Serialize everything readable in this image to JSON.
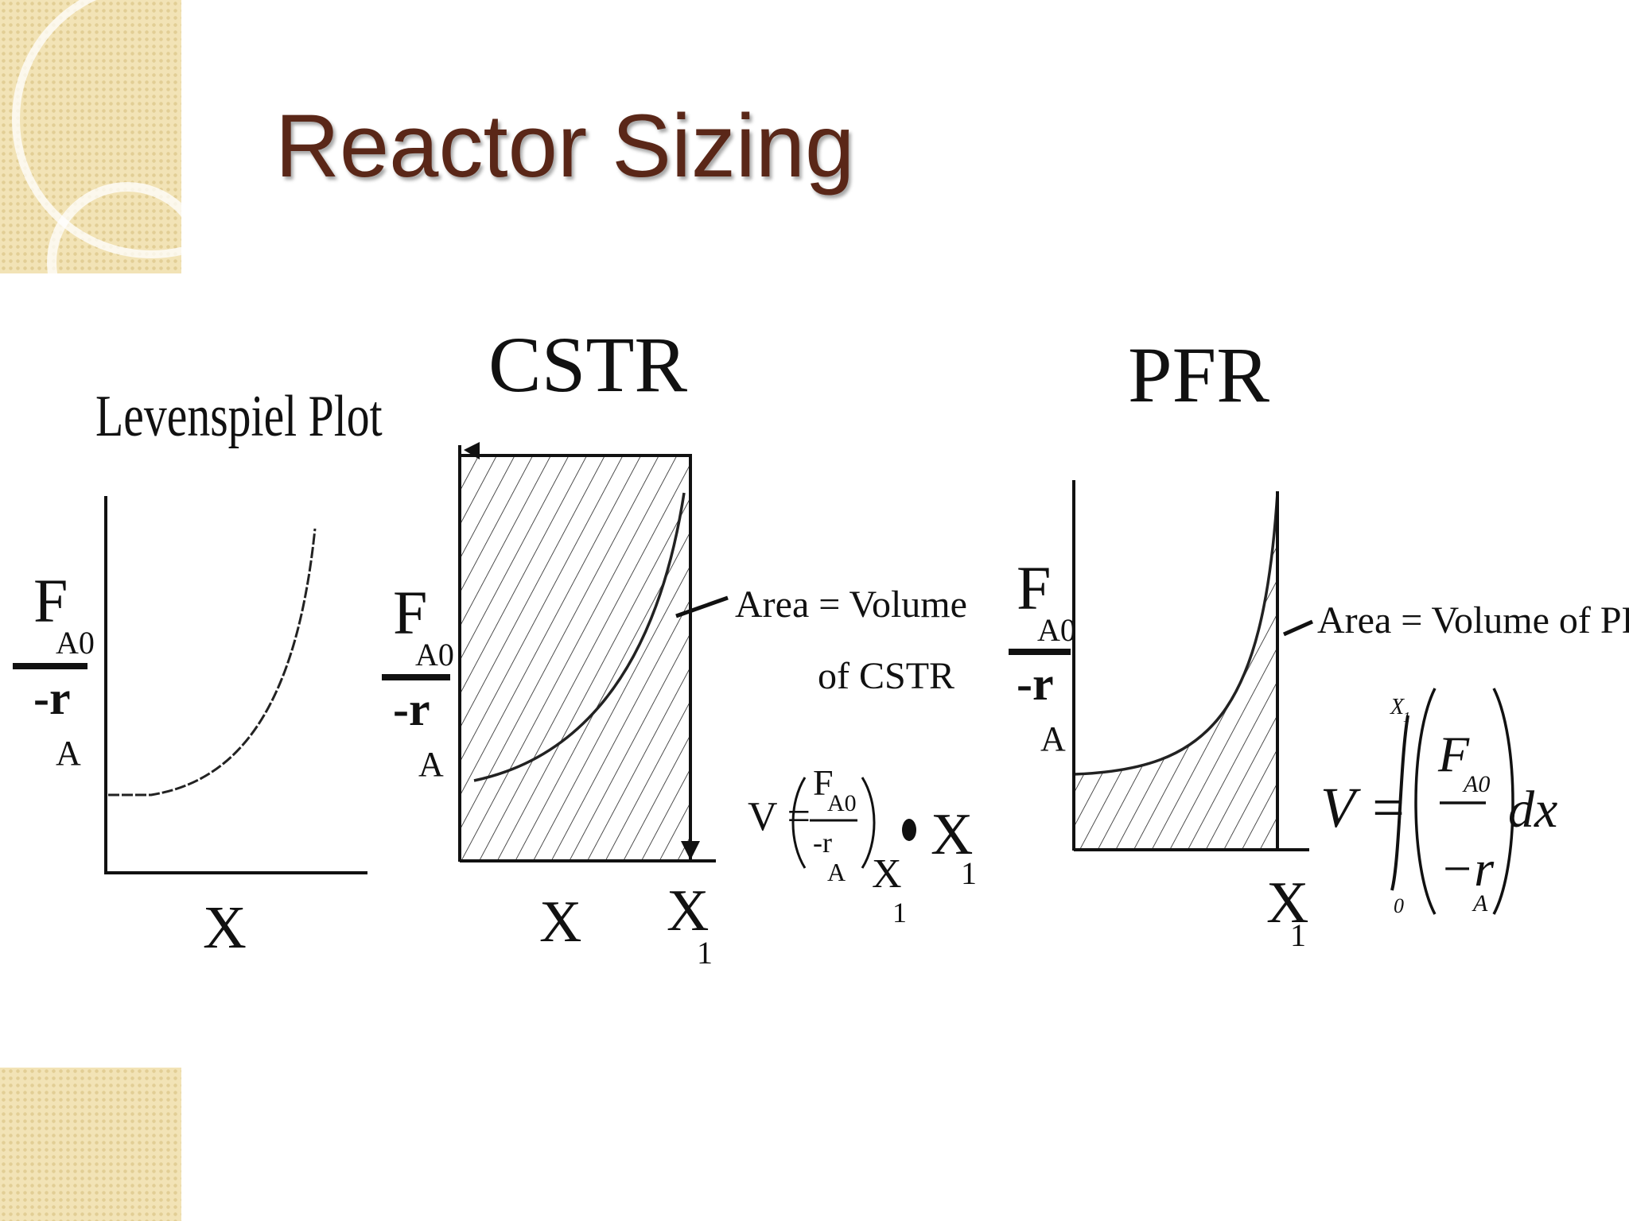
{
  "slide": {
    "title": "Reactor Sizing"
  },
  "levenspiel": {
    "heading": "Levenspiel Plot",
    "y_num": "F",
    "y_num_sub": "A0",
    "y_den": "-r",
    "y_den_sub": "A",
    "x_label": "X"
  },
  "cstr": {
    "heading": "CSTR",
    "y_num": "F",
    "y_num_sub": "A0",
    "y_den": "-r",
    "y_den_sub": "A",
    "x_label": "X",
    "x1_label": "X",
    "x1_sub": "1",
    "area_line1": "Area = Volume",
    "area_line2": "of CSTR",
    "eq_v": "V =",
    "eq_num": "F",
    "eq_num_sub": "A0",
    "eq_den": "-r",
    "eq_den_sub": "A",
    "eq_eval": "X",
    "eq_eval_sub": "1",
    "eq_x1": "X",
    "eq_x1_sub": "1"
  },
  "pfr": {
    "heading": "PFR",
    "y_num": "F",
    "y_num_sub": "A0",
    "y_den": "-r",
    "y_den_sub": "A",
    "x1_label": "X",
    "x1_sub": "1",
    "area_label": "Area = Volume of  PFR",
    "eq_v": "V =",
    "eq_upper": "X",
    "eq_upper_sub": "1",
    "eq_lower": "0",
    "eq_num": "F",
    "eq_num_sub": "A0",
    "eq_den": "−r",
    "eq_den_sub": "A",
    "eq_dx": "dx"
  },
  "colors": {
    "title": "#5a2718",
    "decoration": "#f2e3b6",
    "ink": "#111111"
  }
}
